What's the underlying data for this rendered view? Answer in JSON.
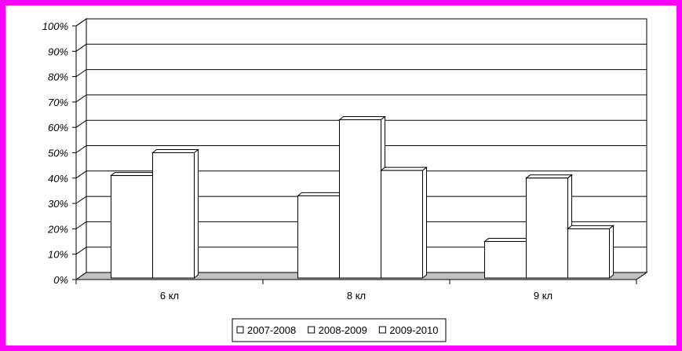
{
  "chart_data": {
    "type": "bar",
    "categories": [
      "6 кл",
      "8 кл",
      "9 кл"
    ],
    "series": [
      {
        "name": "2007-2008",
        "values": [
          41,
          33,
          15
        ]
      },
      {
        "name": "2008-2009",
        "values": [
          50,
          63,
          40
        ]
      },
      {
        "name": "2009-2010",
        "values": [
          null,
          43,
          20
        ]
      }
    ],
    "y_ticks": [
      "0%",
      "10%",
      "20%",
      "30%",
      "40%",
      "50%",
      "60%",
      "70%",
      "80%",
      "90%",
      "100%"
    ],
    "ylim": [
      0,
      100
    ],
    "grid": true,
    "legend_position": "bottom",
    "three_d": true,
    "colors": {
      "border": "#ff00ff",
      "bar_fill": "#ffffff",
      "floor": "#c0c0c0",
      "stroke": "#000000"
    }
  }
}
